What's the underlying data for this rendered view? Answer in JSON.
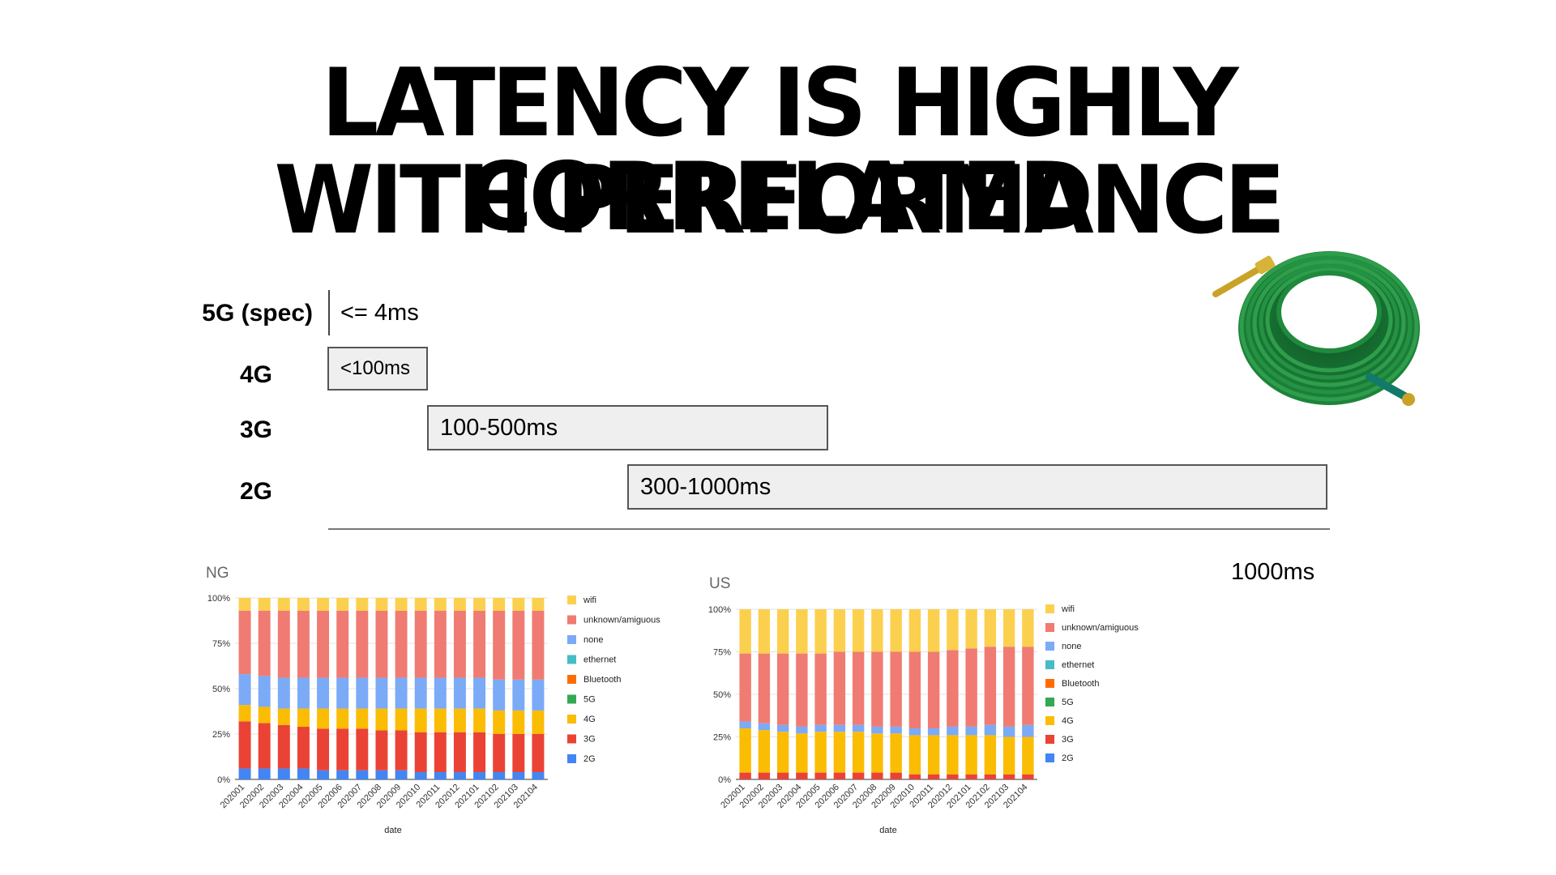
{
  "slide": {
    "title_line1": "LATENCY IS HIGHLY CORRELATED",
    "title_line2": "WITH PERFORMANCE"
  },
  "latency": {
    "rows": [
      {
        "label": "5G (spec)",
        "range": "<= 4ms",
        "min_ms": 0,
        "max_ms": 4
      },
      {
        "label": "4G",
        "range": "<100ms",
        "min_ms": 0,
        "max_ms": 100
      },
      {
        "label": "3G",
        "range": "100-500ms",
        "min_ms": 100,
        "max_ms": 500
      },
      {
        "label": "2G",
        "range": "300-1000ms",
        "min_ms": 300,
        "max_ms": 1000
      }
    ],
    "axis_end_label": "1000ms"
  },
  "chart_data": [
    {
      "type": "bar",
      "stacked": true,
      "title": "NG",
      "xlabel": "date",
      "ylabel": "",
      "ylim": [
        0,
        100
      ],
      "yticks": [
        "0%",
        "25%",
        "50%",
        "75%",
        "100%"
      ],
      "legend_position": "right",
      "categories": [
        "202001",
        "202002",
        "202003",
        "202004",
        "202005",
        "202006",
        "202007",
        "202008",
        "202009",
        "202010",
        "202011",
        "202012",
        "202101",
        "202102",
        "202103",
        "202104"
      ],
      "series": [
        {
          "name": "2G",
          "color": "#4285f4",
          "values": [
            6,
            6,
            6,
            6,
            5,
            5,
            5,
            5,
            5,
            4,
            4,
            4,
            4,
            4,
            4,
            4
          ]
        },
        {
          "name": "3G",
          "color": "#ea4335",
          "values": [
            26,
            25,
            24,
            23,
            23,
            23,
            23,
            22,
            22,
            22,
            22,
            22,
            22,
            21,
            21,
            21
          ]
        },
        {
          "name": "4G",
          "color": "#fbbc04",
          "values": [
            9,
            9,
            9,
            10,
            11,
            11,
            11,
            12,
            12,
            13,
            13,
            13,
            13,
            13,
            13,
            13
          ]
        },
        {
          "name": "5G",
          "color": "#34a853",
          "values": [
            0,
            0,
            0,
            0,
            0,
            0,
            0,
            0,
            0,
            0,
            0,
            0,
            0,
            0,
            0,
            0
          ]
        },
        {
          "name": "Bluetooth",
          "color": "#ff6d01",
          "values": [
            0,
            0,
            0,
            0,
            0,
            0,
            0,
            0,
            0,
            0,
            0,
            0,
            0,
            0,
            0,
            0
          ]
        },
        {
          "name": "ethernet",
          "color": "#46bdc6",
          "values": [
            0,
            0,
            0,
            0,
            0,
            0,
            0,
            0,
            0,
            0,
            0,
            0,
            0,
            0,
            0,
            0
          ]
        },
        {
          "name": "none",
          "color": "#7baaf7",
          "values": [
            17,
            17,
            17,
            17,
            17,
            17,
            17,
            17,
            17,
            17,
            17,
            17,
            17,
            17,
            17,
            17
          ]
        },
        {
          "name": "unknown/amiguous",
          "color": "#f07b72",
          "values": [
            35,
            36,
            37,
            37,
            37,
            37,
            37,
            37,
            37,
            37,
            37,
            37,
            37,
            38,
            38,
            38
          ]
        },
        {
          "name": "wifi",
          "color": "#fcd04f",
          "values": [
            7,
            7,
            7,
            7,
            7,
            7,
            7,
            7,
            7,
            7,
            7,
            7,
            7,
            7,
            7,
            7
          ]
        }
      ]
    },
    {
      "type": "bar",
      "stacked": true,
      "title": "US",
      "xlabel": "date",
      "ylabel": "",
      "ylim": [
        0,
        100
      ],
      "yticks": [
        "0%",
        "25%",
        "50%",
        "75%",
        "100%"
      ],
      "legend_position": "right",
      "categories": [
        "202001",
        "202002",
        "202003",
        "202004",
        "202005",
        "202006",
        "202007",
        "202008",
        "202009",
        "202010",
        "202011",
        "202012",
        "202101",
        "202102",
        "202103",
        "202104"
      ],
      "series": [
        {
          "name": "2G",
          "color": "#4285f4",
          "values": [
            0,
            0,
            0,
            0,
            0,
            0,
            0,
            0,
            0,
            0,
            0,
            0,
            0,
            0,
            0,
            0
          ]
        },
        {
          "name": "3G",
          "color": "#ea4335",
          "values": [
            4,
            4,
            4,
            4,
            4,
            4,
            4,
            4,
            4,
            3,
            3,
            3,
            3,
            3,
            3,
            3
          ]
        },
        {
          "name": "4G",
          "color": "#fbbc04",
          "values": [
            26,
            25,
            24,
            23,
            24,
            24,
            24,
            23,
            23,
            23,
            23,
            23,
            23,
            23,
            22,
            22
          ]
        },
        {
          "name": "5G",
          "color": "#34a853",
          "values": [
            0,
            0,
            0,
            0,
            0,
            0,
            0,
            0,
            0,
            0,
            0,
            0,
            0,
            0,
            0,
            0
          ]
        },
        {
          "name": "Bluetooth",
          "color": "#ff6d01",
          "values": [
            0,
            0,
            0,
            0,
            0,
            0,
            0,
            0,
            0,
            0,
            0,
            0,
            0,
            0,
            0,
            0
          ]
        },
        {
          "name": "ethernet",
          "color": "#46bdc6",
          "values": [
            0,
            0,
            0,
            0,
            0,
            0,
            0,
            0,
            0,
            0,
            0,
            0,
            0,
            0,
            0,
            0
          ]
        },
        {
          "name": "none",
          "color": "#7baaf7",
          "values": [
            4,
            4,
            4,
            4,
            4,
            4,
            4,
            4,
            4,
            4,
            4,
            5,
            5,
            6,
            6,
            7
          ]
        },
        {
          "name": "unknown/amiguous",
          "color": "#f07b72",
          "values": [
            40,
            41,
            42,
            43,
            42,
            43,
            43,
            44,
            44,
            45,
            45,
            45,
            46,
            46,
            47,
            46
          ]
        },
        {
          "name": "wifi",
          "color": "#fcd04f",
          "values": [
            26,
            26,
            26,
            26,
            26,
            25,
            25,
            25,
            25,
            25,
            25,
            24,
            23,
            22,
            22,
            22
          ]
        }
      ]
    }
  ]
}
